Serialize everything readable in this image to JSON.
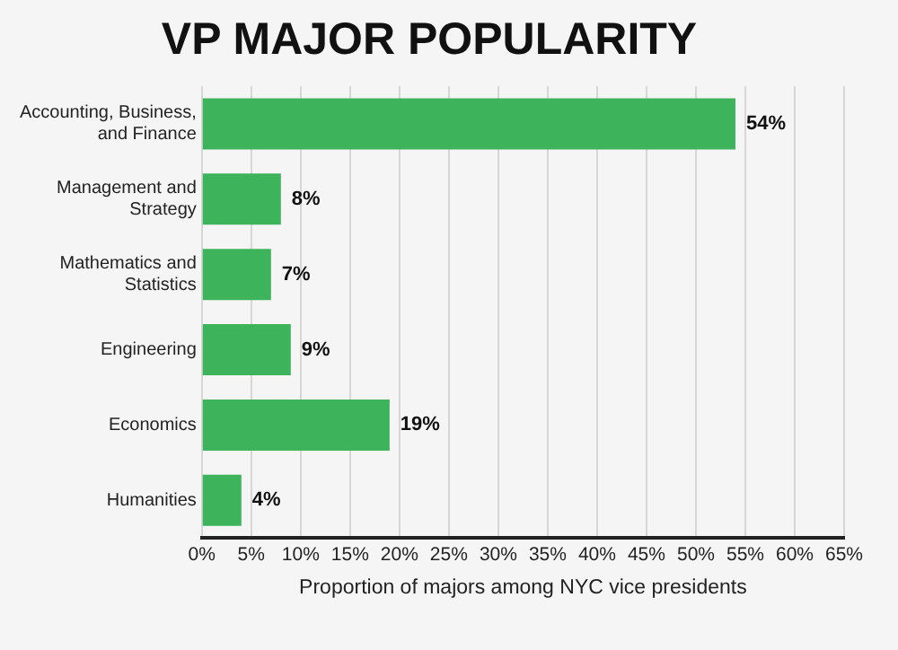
{
  "chart_data": {
    "type": "bar",
    "orientation": "horizontal",
    "title": "VP MAJOR POPULARITY",
    "xlabel": "Proportion of majors among NYC vice presidents",
    "categories": [
      "Accounting, Business, and Finance",
      "Management and Strategy",
      "Mathematics and Statistics",
      "Engineering",
      "Economics",
      "Humanities"
    ],
    "values": [
      54,
      8,
      7,
      9,
      19,
      4
    ],
    "value_labels": [
      "54%",
      "8%",
      "7%",
      "9%",
      "19%",
      "4%"
    ],
    "color": "#3db35b",
    "xlim": [
      0,
      65
    ],
    "xticks": [
      {
        "value": 0,
        "label": "0%"
      },
      {
        "value": 5,
        "label": "5%"
      },
      {
        "value": 10,
        "label": "10%"
      },
      {
        "value": 15,
        "label": "15%"
      },
      {
        "value": 20,
        "label": "20%"
      },
      {
        "value": 25,
        "label": "25%"
      },
      {
        "value": 30,
        "label": "30%"
      },
      {
        "value": 35,
        "label": "35%"
      },
      {
        "value": 40,
        "label": "40%"
      },
      {
        "value": 45,
        "label": "45%"
      },
      {
        "value": 50,
        "label": "50%"
      },
      {
        "value": 55,
        "label": "55%"
      },
      {
        "value": 60,
        "label": "60%"
      },
      {
        "value": 65,
        "label": "65%"
      }
    ],
    "grid": "x"
  }
}
